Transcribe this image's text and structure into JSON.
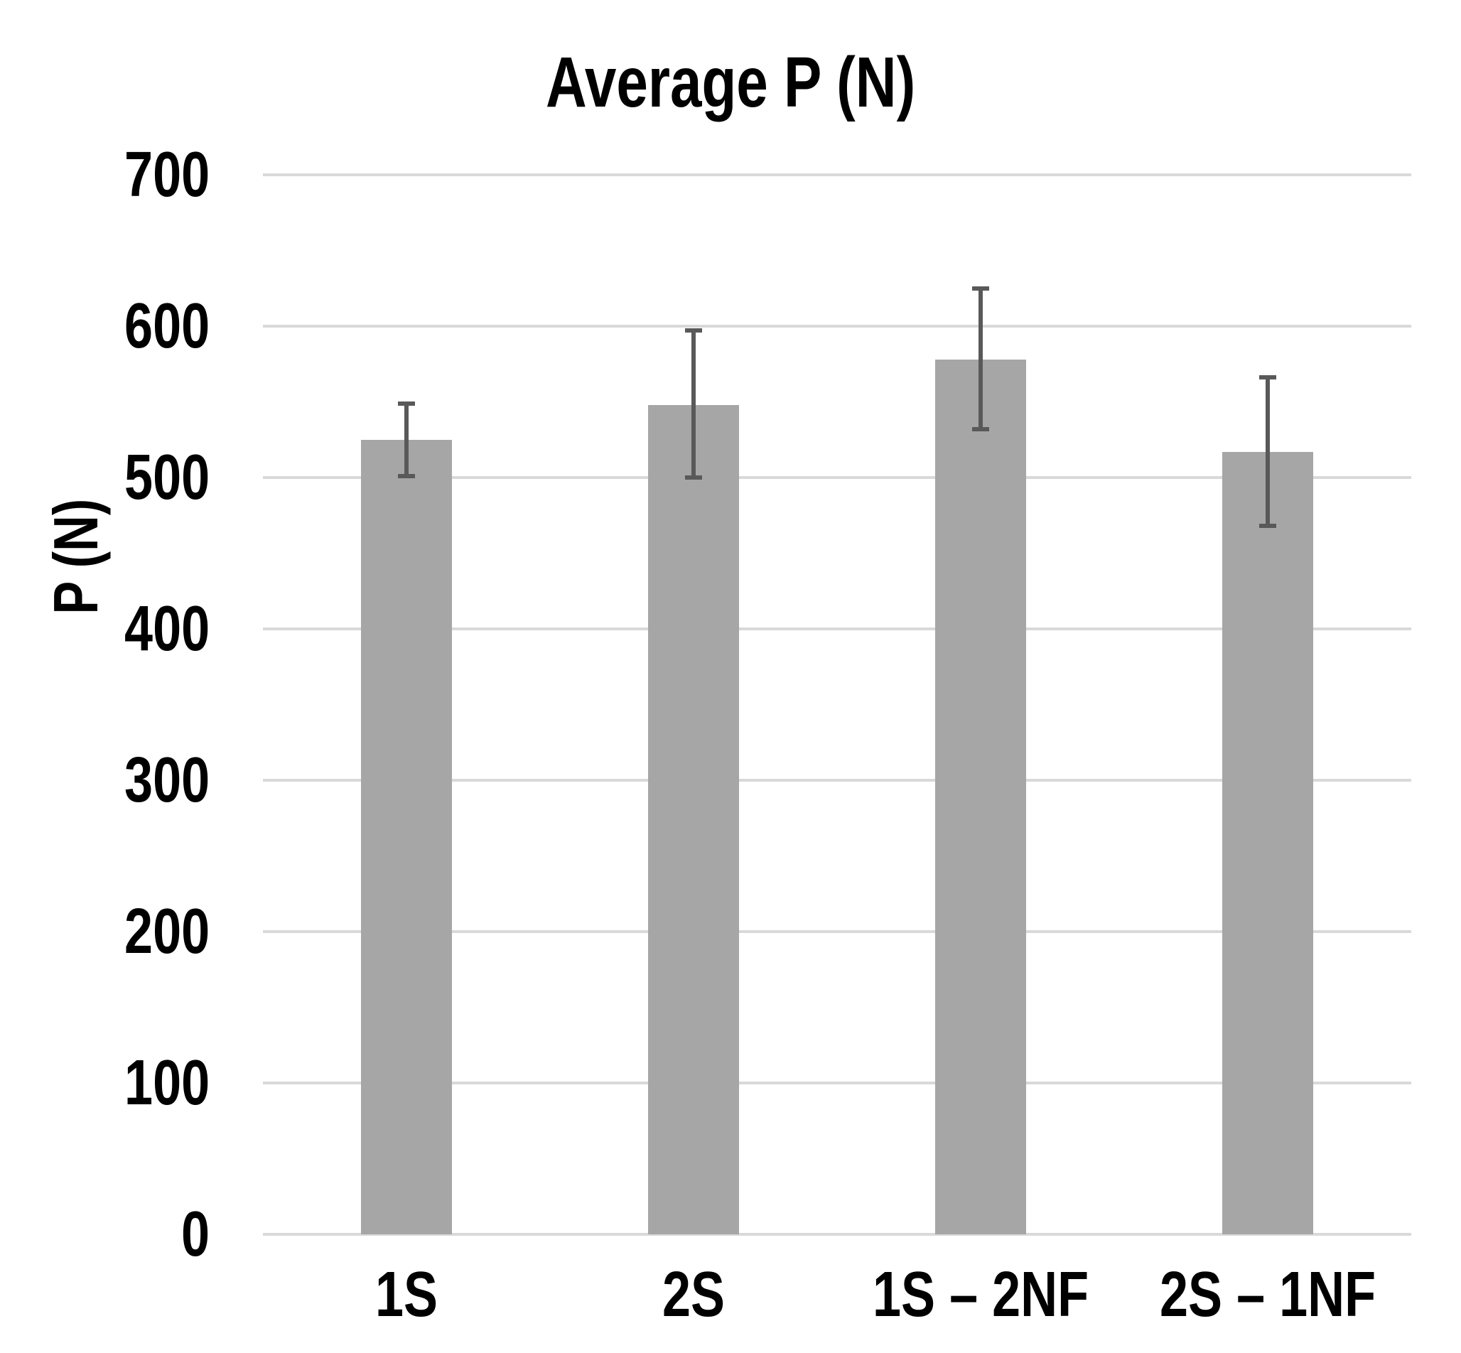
{
  "chart_data": {
    "type": "bar",
    "title": "Average P (N)",
    "xlabel": "",
    "ylabel": "P (N)",
    "categories": [
      "1S",
      "2S",
      "1S – 2NF",
      "2S – 1NF"
    ],
    "values": [
      525,
      548,
      578,
      517
    ],
    "error_upper": [
      549,
      597,
      625,
      566
    ],
    "error_lower": [
      501,
      500,
      532,
      468
    ],
    "ylim": [
      0,
      700
    ],
    "yticks": [
      0,
      100,
      200,
      300,
      400,
      500,
      600,
      700
    ],
    "grid": "horizontal",
    "legend": "none",
    "bar_color": "#a6a6a6",
    "error_bar_color": "#595959",
    "gridline_color": "#d9d9d9",
    "text_color": "#000000",
    "background_color": "#ffffff"
  }
}
